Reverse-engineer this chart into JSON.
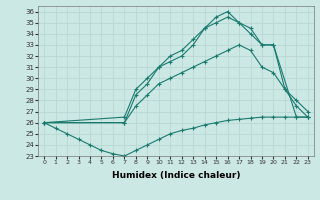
{
  "xlabel": "Humidex (Indice chaleur)",
  "xlim": [
    -0.5,
    23.5
  ],
  "ylim": [
    23,
    36.5
  ],
  "xticks": [
    0,
    1,
    2,
    3,
    4,
    5,
    6,
    7,
    8,
    9,
    10,
    11,
    12,
    13,
    14,
    15,
    16,
    17,
    18,
    19,
    20,
    21,
    22,
    23
  ],
  "yticks": [
    23,
    24,
    25,
    26,
    27,
    28,
    29,
    30,
    31,
    32,
    33,
    34,
    35,
    36
  ],
  "bg_color": "#cce8e5",
  "grid_color": "#b8d8d5",
  "line_color": "#1a7a6e",
  "lines": [
    {
      "x": [
        0,
        1,
        2,
        3,
        4,
        5,
        6,
        7,
        8,
        9,
        10,
        11,
        12,
        13,
        14,
        15,
        16,
        17,
        18,
        19,
        20,
        21,
        22,
        23
      ],
      "y": [
        26,
        25.5,
        25,
        24.5,
        24,
        23.5,
        23.2,
        23,
        23.5,
        24,
        24.5,
        25,
        25.3,
        25.5,
        25.8,
        26,
        26.2,
        26.3,
        26.4,
        26.5,
        26.5,
        26.5,
        26.5,
        26.5
      ]
    },
    {
      "x": [
        0,
        7,
        8,
        9,
        10,
        11,
        12,
        13,
        14,
        15,
        16,
        17,
        18,
        19,
        20,
        21,
        22,
        23
      ],
      "y": [
        26,
        26,
        27.5,
        28.5,
        29.5,
        30,
        30.5,
        31,
        31.5,
        32,
        32.5,
        33,
        32.5,
        31,
        30.5,
        29,
        28,
        27
      ]
    },
    {
      "x": [
        0,
        7,
        8,
        9,
        10,
        11,
        12,
        13,
        14,
        15,
        16,
        17,
        18,
        19,
        20,
        21,
        22,
        23
      ],
      "y": [
        26,
        26,
        28.5,
        29.5,
        31,
        31.5,
        32,
        33,
        34.5,
        35,
        35.5,
        35,
        34,
        33,
        33,
        29,
        27.5,
        26.5
      ]
    },
    {
      "x": [
        0,
        7,
        8,
        9,
        10,
        11,
        12,
        13,
        14,
        15,
        16,
        17,
        18,
        19,
        20,
        22,
        23
      ],
      "y": [
        26,
        26.5,
        29,
        30,
        31,
        32,
        32.5,
        33.5,
        34.5,
        35.5,
        36,
        35,
        34.5,
        33,
        33,
        26.5,
        26.5
      ]
    }
  ]
}
